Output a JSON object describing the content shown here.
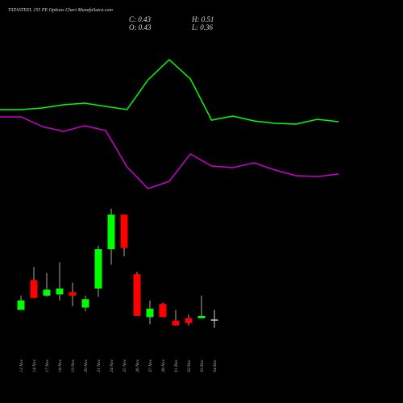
{
  "header": {
    "title": "TATASTEEL 155 PE Options Chart MunafaSutra.com",
    "close": "C: 0.43",
    "high": "H: 0.51",
    "open": "O: 0.43",
    "low": "L: 0.36"
  },
  "chart_data": [
    {
      "type": "line",
      "ylim": [
        0,
        100
      ],
      "series": [
        {
          "color": "#00ff00",
          "values": [
            62,
            62,
            63,
            65,
            66,
            64,
            62,
            80.5,
            93,
            81,
            55.5,
            58,
            55,
            53.5,
            53,
            56,
            54.5
          ]
        },
        {
          "color": "#cc00cc",
          "values": [
            57.5,
            57.5,
            51.5,
            48.5,
            52,
            49,
            26.5,
            13,
            17.5,
            34.5,
            27,
            26,
            29,
            24.5,
            21,
            20.5,
            22
          ]
        }
      ]
    },
    {
      "type": "candlestick",
      "ylim": [
        0.27,
        1.42
      ],
      "up_color": "#00ff00",
      "down_color": "#ff0000",
      "doji_color": "#cccccc",
      "categories": [
        "12 Nov",
        "14 Nov",
        "17 Nov",
        "18 Nov",
        "19 Nov",
        "20 Nov",
        "21 Nov",
        "24 Nov",
        "25 Nov",
        "26 Nov",
        "27 Nov",
        "28 Nov",
        "01 Dec",
        "02 Dec",
        "03 Dec",
        "04 Dec"
      ],
      "open": [
        0.51,
        0.76,
        0.63,
        0.64,
        0.66,
        0.53,
        0.69,
        1.02,
        1.31,
        0.81,
        0.45,
        0.56,
        0.42,
        0.44,
        0.44,
        0.43
      ],
      "high": [
        0.63,
        0.87,
        0.82,
        0.91,
        0.74,
        0.63,
        1.05,
        1.36,
        1.31,
        0.83,
        0.59,
        0.57,
        0.51,
        0.47,
        0.63,
        0.51
      ],
      "low": [
        0.51,
        0.61,
        0.62,
        0.59,
        0.54,
        0.5,
        0.62,
        0.89,
        0.96,
        0.46,
        0.39,
        0.45,
        0.38,
        0.38,
        0.44,
        0.36
      ],
      "close": [
        0.59,
        0.61,
        0.68,
        0.69,
        0.63,
        0.6,
        1.02,
        1.31,
        1.03,
        0.46,
        0.52,
        0.45,
        0.38,
        0.4,
        0.46,
        0.43
      ]
    }
  ]
}
